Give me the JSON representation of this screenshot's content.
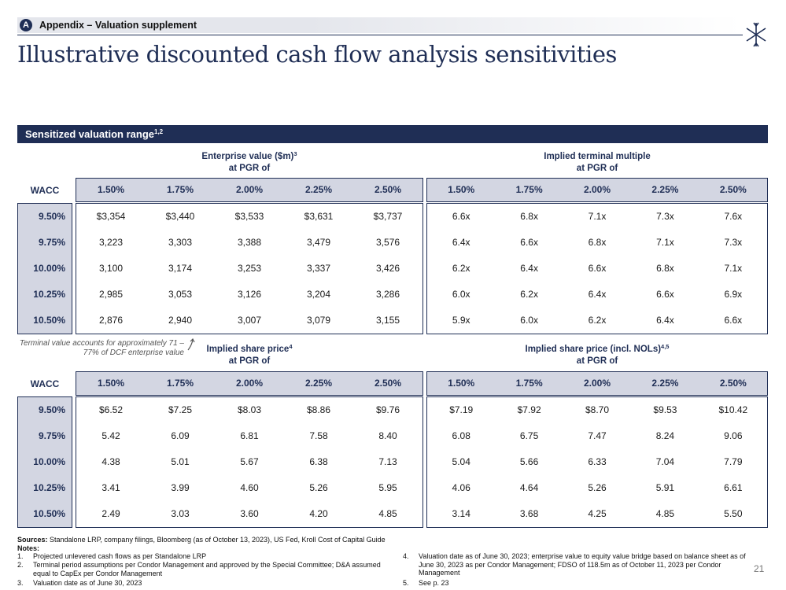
{
  "header": {
    "section_letter": "A",
    "section_label": "Appendix – Valuation supplement",
    "title": "Illustrative discounted cash flow analysis sensitivities"
  },
  "band": {
    "label": "Sensitized valuation range",
    "sup": "1,2"
  },
  "wacc_header": "WACC",
  "pgr_columns": [
    "1.50%",
    "1.75%",
    "2.00%",
    "2.25%",
    "2.50%"
  ],
  "wacc_rows": [
    "9.50%",
    "9.75%",
    "10.00%",
    "10.25%",
    "10.50%"
  ],
  "tables": {
    "ev": {
      "title": "Enterprise value ($m)",
      "sup": "3",
      "subtitle": "at PGR of",
      "rows": [
        [
          "$3,354",
          "$3,440",
          "$3,533",
          "$3,631",
          "$3,737"
        ],
        [
          "3,223",
          "3,303",
          "3,388",
          "3,479",
          "3,576"
        ],
        [
          "3,100",
          "3,174",
          "3,253",
          "3,337",
          "3,426"
        ],
        [
          "2,985",
          "3,053",
          "3,126",
          "3,204",
          "3,286"
        ],
        [
          "2,876",
          "2,940",
          "3,007",
          "3,079",
          "3,155"
        ]
      ]
    },
    "tm": {
      "title": "Implied terminal multiple",
      "sup": "",
      "subtitle": "at PGR of",
      "rows": [
        [
          "6.6x",
          "6.8x",
          "7.1x",
          "7.3x",
          "7.6x"
        ],
        [
          "6.4x",
          "6.6x",
          "6.8x",
          "7.1x",
          "7.3x"
        ],
        [
          "6.2x",
          "6.4x",
          "6.6x",
          "6.8x",
          "7.1x"
        ],
        [
          "6.0x",
          "6.2x",
          "6.4x",
          "6.6x",
          "6.9x"
        ],
        [
          "5.9x",
          "6.0x",
          "6.2x",
          "6.4x",
          "6.6x"
        ]
      ]
    },
    "sp": {
      "title": "Implied share price",
      "sup": "4",
      "subtitle": "at PGR of",
      "rows": [
        [
          "$6.52",
          "$7.25",
          "$8.03",
          "$8.86",
          "$9.76"
        ],
        [
          "5.42",
          "6.09",
          "6.81",
          "7.58",
          "8.40"
        ],
        [
          "4.38",
          "5.01",
          "5.67",
          "6.38",
          "7.13"
        ],
        [
          "3.41",
          "3.99",
          "4.60",
          "5.26",
          "5.95"
        ],
        [
          "2.49",
          "3.03",
          "3.60",
          "4.20",
          "4.85"
        ]
      ]
    },
    "spn": {
      "title": "Implied share price (incl. NOLs)",
      "sup": "4,5",
      "subtitle": "at PGR of",
      "rows": [
        [
          "$7.19",
          "$7.92",
          "$8.70",
          "$9.53",
          "$10.42"
        ],
        [
          "6.08",
          "6.75",
          "7.47",
          "8.24",
          "9.06"
        ],
        [
          "5.04",
          "5.66",
          "6.33",
          "7.04",
          "7.79"
        ],
        [
          "4.06",
          "4.64",
          "5.26",
          "5.91",
          "6.61"
        ],
        [
          "3.14",
          "3.68",
          "4.25",
          "4.85",
          "5.50"
        ]
      ]
    }
  },
  "terminal_note": "Terminal value accounts for approximately 71 – 77% of DCF enterprise value",
  "footer": {
    "sources_label": "Sources:",
    "sources_text": "Standalone LRP, company filings, Bloomberg (as of October 13, 2023), US Fed, Kroll Cost of Capital Guide",
    "notes_label": "Notes:",
    "notes": [
      {
        "num": "1.",
        "text": "Projected unlevered cash flows as per Standalone LRP"
      },
      {
        "num": "2.",
        "text": "Terminal period assumptions per Condor Management and approved by the Special Committee; D&A assumed equal to CapEx per Condor Management"
      },
      {
        "num": "3.",
        "text": "Valuation date as of June 30, 2023"
      },
      {
        "num": "4.",
        "text": "Valuation date as of June 30, 2023; enterprise value to equity value bridge based on balance sheet as of June 30, 2023 as per Condor Management; FDSO of 118.5m as of October 11, 2023 per Condor Management"
      },
      {
        "num": "5.",
        "text": "See p. 23"
      }
    ],
    "page_number": "21"
  }
}
